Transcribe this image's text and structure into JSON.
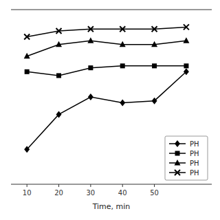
{
  "chart_data": {
    "type": "line",
    "xlabel": "Time, min",
    "x": [
      10,
      20,
      30,
      40,
      50,
      60
    ],
    "series": [
      {
        "name": "PH",
        "color": "#000000",
        "marker": "diamond",
        "line_style": "solid",
        "values": [
          28,
          46,
          55,
          52,
          53,
          68
        ]
      },
      {
        "name": "PH",
        "color": "#000000",
        "marker": "square",
        "line_style": "solid",
        "values": [
          68,
          66,
          70,
          71,
          71,
          71
        ]
      },
      {
        "name": "PH",
        "color": "#000000",
        "marker": "triangle",
        "line_style": "solid",
        "values": [
          76,
          82,
          84,
          82,
          82,
          84
        ]
      },
      {
        "name": "PH",
        "color": "#000000",
        "marker": "x",
        "line_style": "solid",
        "values": [
          86,
          89,
          90,
          90,
          90,
          91
        ]
      }
    ],
    "xlim": [
      5,
      68
    ],
    "ylim": [
      10,
      100
    ],
    "xticks": [
      10,
      20,
      30,
      40,
      50
    ],
    "legend": "lower right",
    "tick_labels": "x",
    "grid": false
  }
}
